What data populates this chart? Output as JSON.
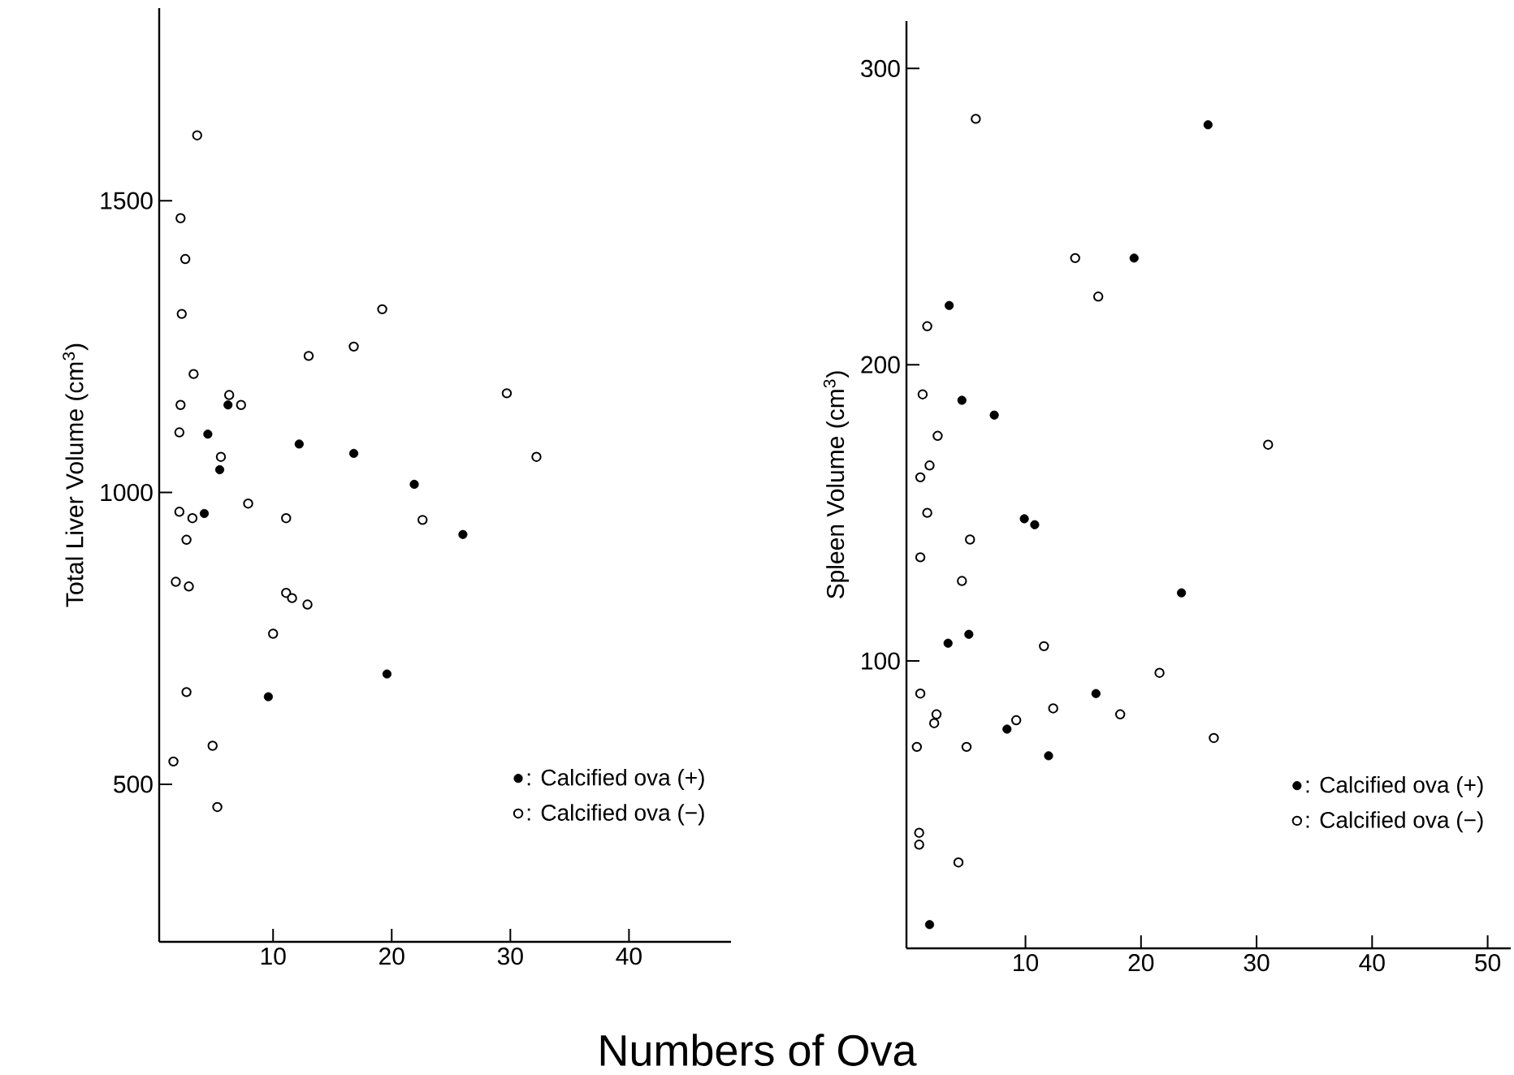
{
  "chart_data": [
    {
      "type": "scatter",
      "xlabel": "Numbers of Ova",
      "ylabel": "Total Liver Volume (cm$^{3}$)",
      "xlim": [
        0.4,
        48.6
      ],
      "ylim": [
        230,
        1830
      ],
      "xticks": [
        10,
        20,
        30,
        40
      ],
      "yticks": [
        500,
        1000,
        1500
      ],
      "grid": false,
      "legend": "bottom right",
      "series": [
        {
          "name": ": Calcified ova (+)",
          "color": "#000000",
          "marker": "circle",
          "x": [
            6.2,
            4.5,
            12.2,
            16.8,
            5.5,
            21.9,
            4.2,
            26.0,
            9.6,
            19.6
          ],
          "values": [
            1150,
            1100,
            1083,
            1067,
            1039,
            1014,
            964,
            928,
            650,
            689
          ]
        },
        {
          "name": ": Calcified ova (−)",
          "color": "#000000",
          "marker": "circle_open",
          "x": [
            3.6,
            2.2,
            2.6,
            2.3,
            3.3,
            2.2,
            2.1,
            5.6,
            6.3,
            7.3,
            13.0,
            16.8,
            19.2,
            29.7,
            32.2,
            2.1,
            3.2,
            2.7,
            7.9,
            11.1,
            22.6,
            1.8,
            2.9,
            11.1,
            11.6,
            12.9,
            10.0,
            2.7,
            4.9,
            1.6,
            5.3
          ],
          "values": [
            1612,
            1470,
            1400,
            1306,
            1203,
            1150,
            1103,
            1061,
            1167,
            1150,
            1234,
            1250,
            1314,
            1170,
            1061,
            967,
            956,
            919,
            981,
            956,
            953,
            847,
            839,
            828,
            819,
            808,
            758,
            658,
            566,
            539,
            461
          ]
        }
      ]
    },
    {
      "type": "scatter",
      "ylabel": "Spleen Volume (cm$^{3}$)",
      "xlim": [
        -0.3,
        52
      ],
      "ylim": [
        3,
        316
      ],
      "xticks": [
        10,
        20,
        30,
        40,
        50
      ],
      "yticks": [
        100,
        200,
        300
      ],
      "grid": false,
      "legend": "bottom right",
      "series": [
        {
          "name": ": Calcified ova (+)",
          "color": "#000000",
          "marker": "circle",
          "x": [
            25.8,
            19.4,
            3.4,
            4.5,
            7.3,
            9.9,
            10.8,
            23.5,
            3.3,
            5.1,
            16.1,
            8.4,
            12.0,
            1.7
          ],
          "values": [
            281,
            236,
            220,
            188,
            183,
            148,
            146,
            123,
            106,
            109,
            89,
            77,
            68,
            11
          ]
        },
        {
          "name": ": Calcified ova (−)",
          "color": "#000000",
          "marker": "circle_open",
          "x": [
            5.7,
            14.3,
            16.3,
            1.5,
            1.1,
            2.4,
            1.7,
            0.9,
            1.5,
            5.2,
            31.0,
            0.9,
            4.5,
            11.6,
            21.6,
            0.9,
            2.3,
            2.1,
            0.6,
            4.9,
            9.2,
            12.4,
            18.2,
            26.3,
            0.8,
            0.8,
            4.2
          ],
          "values": [
            283,
            236,
            223,
            213,
            190,
            176,
            166,
            162,
            150,
            141,
            173,
            135,
            127,
            105,
            96,
            89,
            82,
            79,
            71,
            71,
            80,
            84,
            82,
            74,
            42,
            38,
            32
          ]
        }
      ]
    }
  ]
}
